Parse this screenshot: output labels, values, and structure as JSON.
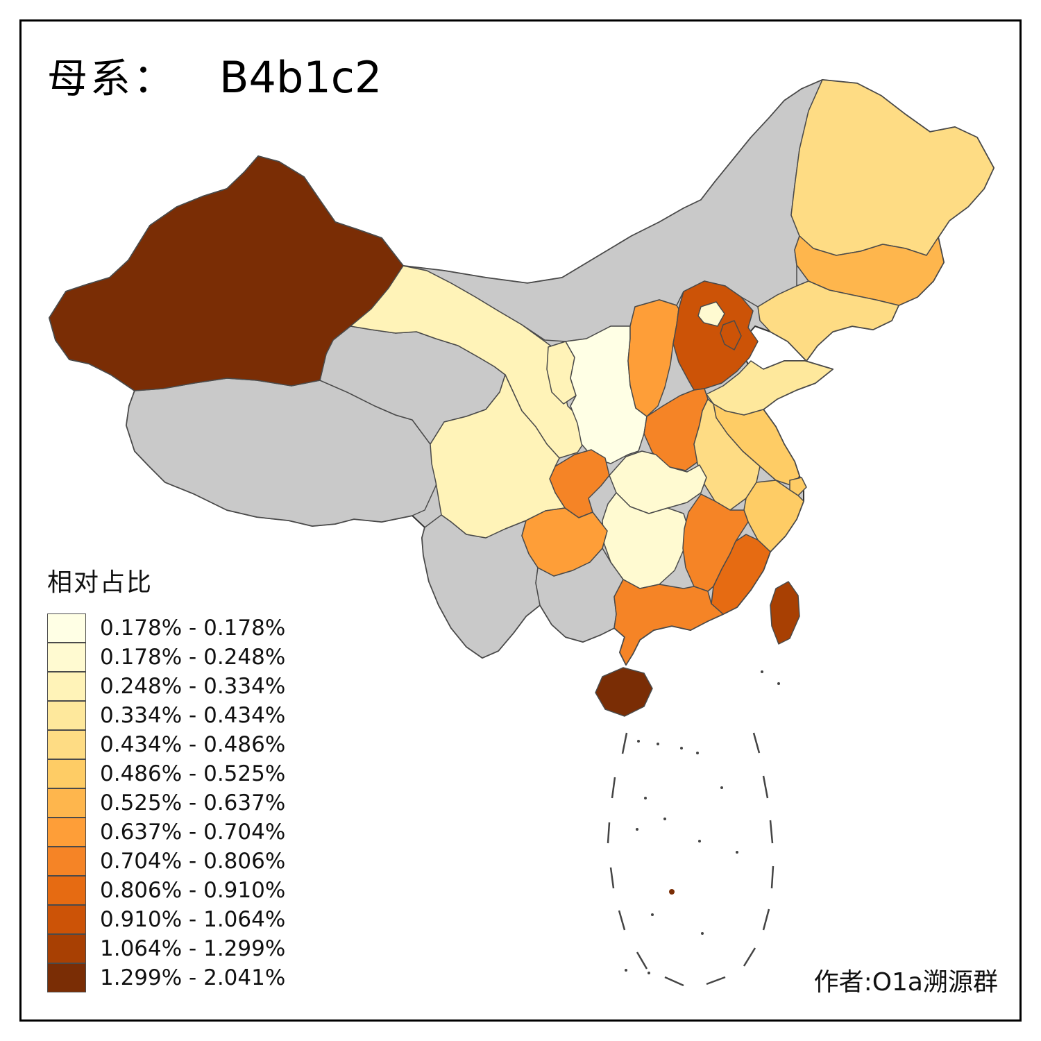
{
  "title": {
    "prefix": "母系：",
    "haplogroup": "B4b1c2"
  },
  "credit": "作者:O1a溯源群",
  "legend": {
    "title": "相对占比",
    "bins": [
      {
        "label": "0.178% - 0.178%",
        "color": "#FFFFE5"
      },
      {
        "label": "0.178% - 0.248%",
        "color": "#FFFAD1"
      },
      {
        "label": "0.248% - 0.334%",
        "color": "#FFF3B8"
      },
      {
        "label": "0.334% - 0.434%",
        "color": "#FEE89C"
      },
      {
        "label": "0.434% - 0.486%",
        "color": "#FEDC84"
      },
      {
        "label": "0.486% - 0.525%",
        "color": "#FECC65"
      },
      {
        "label": "0.525% - 0.637%",
        "color": "#FEB64D"
      },
      {
        "label": "0.637% - 0.704%",
        "color": "#FE9E38"
      },
      {
        "label": "0.704% - 0.806%",
        "color": "#F58426"
      },
      {
        "label": "0.806% - 0.910%",
        "color": "#E66B12"
      },
      {
        "label": "0.910% - 1.064%",
        "color": "#CC5307"
      },
      {
        "label": "1.064% - 1.299%",
        "color": "#A84003"
      },
      {
        "label": "1.299% - 2.041%",
        "color": "#7A2D05"
      }
    ]
  },
  "map": {
    "no_data_color": "#C9C9C9",
    "stroke_color": "#4A4A4A",
    "outline_color": "#333333",
    "sea_mark_color": "#444444",
    "provinces": [
      {
        "id": "inner-mongolia",
        "bin": null
      },
      {
        "id": "tibet",
        "bin": null
      },
      {
        "id": "qinghai",
        "bin": null
      },
      {
        "id": "yunnan",
        "bin": null
      },
      {
        "id": "guangxi",
        "bin": null
      },
      {
        "id": "xinjiang",
        "bin": 12
      },
      {
        "id": "gansu",
        "bin": 2
      },
      {
        "id": "ningxia",
        "bin": 2
      },
      {
        "id": "shaanxi",
        "bin": 0
      },
      {
        "id": "shanxi",
        "bin": 7
      },
      {
        "id": "hebei",
        "bin": 10
      },
      {
        "id": "shandong",
        "bin": 3
      },
      {
        "id": "henan",
        "bin": 8
      },
      {
        "id": "jiangsu",
        "bin": 5
      },
      {
        "id": "anhui",
        "bin": 4
      },
      {
        "id": "shanghai",
        "bin": 5
      },
      {
        "id": "zhejiang",
        "bin": 5
      },
      {
        "id": "hubei",
        "bin": 1
      },
      {
        "id": "chongqing",
        "bin": 8
      },
      {
        "id": "sichuan",
        "bin": 2
      },
      {
        "id": "hunan",
        "bin": 1
      },
      {
        "id": "jiangxi",
        "bin": 8
      },
      {
        "id": "fujian",
        "bin": 9
      },
      {
        "id": "guangdong",
        "bin": 8
      },
      {
        "id": "guizhou",
        "bin": 7
      },
      {
        "id": "heilongjiang",
        "bin": 4
      },
      {
        "id": "jilin",
        "bin": 6
      },
      {
        "id": "liaoning",
        "bin": 4
      },
      {
        "id": "hainan",
        "bin": 12
      },
      {
        "id": "taiwan",
        "bin": 11
      },
      {
        "id": "beijing",
        "bin": 1
      },
      {
        "id": "tianjin",
        "bin": 10
      }
    ]
  },
  "chart_data": {
    "type": "choropleth",
    "title": "母系: B4b1c2",
    "legend_title": "相对占比",
    "legend_position": "bottom-left",
    "bin_labels": [
      "0.178% - 0.178%",
      "0.178% - 0.248%",
      "0.248% - 0.334%",
      "0.334% - 0.434%",
      "0.434% - 0.486%",
      "0.486% - 0.525%",
      "0.525% - 0.637%",
      "0.637% - 0.704%",
      "0.704% - 0.806%",
      "0.806% - 0.910%",
      "0.910% - 1.064%",
      "1.064% - 1.299%",
      "1.299% - 2.041%"
    ],
    "regions": {
      "xinjiang": "1.299% - 2.041%",
      "hainan": "1.299% - 2.041%",
      "taiwan": "1.064% - 1.299%",
      "hebei": "0.910% - 1.064%",
      "tianjin": "0.910% - 1.064%",
      "fujian": "0.806% - 0.910%",
      "henan": "0.704% - 0.806%",
      "chongqing": "0.704% - 0.806%",
      "jiangxi": "0.704% - 0.806%",
      "guangdong": "0.704% - 0.806%",
      "shanxi": "0.637% - 0.704%",
      "guizhou": "0.637% - 0.704%",
      "jilin": "0.525% - 0.637%",
      "jiangsu": "0.486% - 0.525%",
      "shanghai": "0.486% - 0.525%",
      "zhejiang": "0.486% - 0.525%",
      "anhui": "0.434% - 0.486%",
      "heilongjiang": "0.434% - 0.486%",
      "liaoning": "0.434% - 0.486%",
      "shandong": "0.334% - 0.434%",
      "gansu": "0.248% - 0.334%",
      "ningxia": "0.248% - 0.334%",
      "sichuan": "0.248% - 0.334%",
      "hubei": "0.178% - 0.248%",
      "hunan": "0.178% - 0.248%",
      "beijing": "0.178% - 0.248%",
      "shaanxi": "0.178% - 0.178%",
      "inner-mongolia": "no data",
      "tibet": "no data",
      "qinghai": "no data",
      "yunnan": "no data",
      "guangxi": "no data"
    }
  }
}
